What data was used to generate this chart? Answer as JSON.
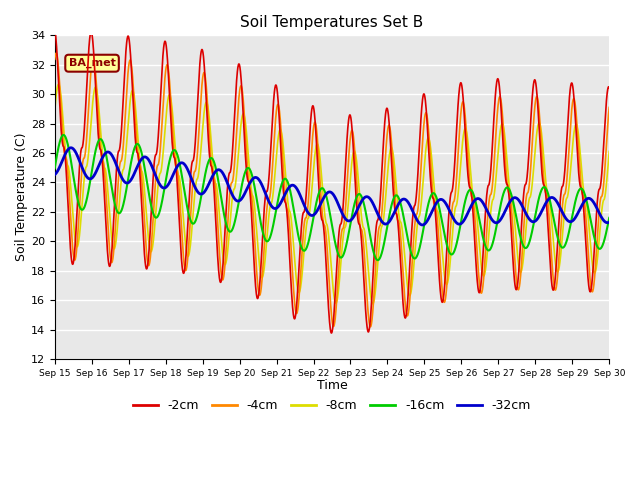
{
  "title": "Soil Temperatures Set B",
  "xlabel": "Time",
  "ylabel": "Soil Temperature (C)",
  "ylim": [
    12,
    34
  ],
  "yticks": [
    12,
    14,
    16,
    18,
    20,
    22,
    24,
    26,
    28,
    30,
    32,
    34
  ],
  "bg_color": "#e8e8e8",
  "annotation_text": "BA_met",
  "annotation_fg": "#8b0000",
  "annotation_bg": "#ffff99",
  "annotation_border": "#8b0000",
  "series_colors": {
    "-2cm": "#dd0000",
    "-4cm": "#ff8800",
    "-8cm": "#dddd00",
    "-16cm": "#00cc00",
    "-32cm": "#0000cc"
  },
  "series_lw": {
    "-2cm": 1.2,
    "-4cm": 1.2,
    "-8cm": 1.2,
    "-16cm": 1.5,
    "-32cm": 2.0
  },
  "legend_order": [
    "-2cm",
    "-4cm",
    "-8cm",
    "-16cm",
    "-32cm"
  ]
}
